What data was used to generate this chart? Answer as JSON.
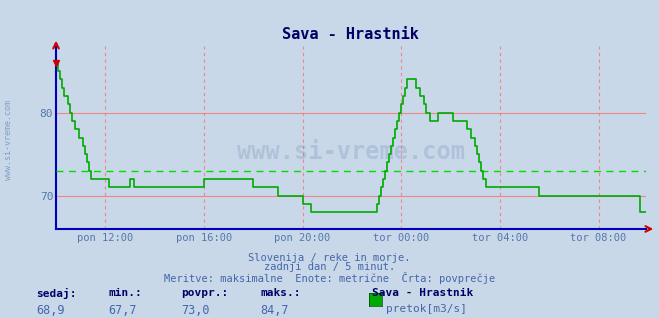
{
  "title": "Sava - Hrastnik",
  "bg_color": "#c8d8e8",
  "plot_bg": "#c8d8e8",
  "line_color": "#00aa00",
  "avg_line_color": "#00dd00",
  "grid_h_color": "#ee8888",
  "grid_v_color": "#ee8888",
  "axis_color": "#0000bb",
  "tick_color": "#cc0000",
  "label_color": "#5577aa",
  "title_color": "#000066",
  "text_color": "#4466aa",
  "yticks": [
    70,
    80
  ],
  "ylim": [
    66.0,
    88.0
  ],
  "xlim": [
    0,
    287
  ],
  "xtick_positions": [
    24,
    72,
    120,
    168,
    216,
    264
  ],
  "xtick_labels": [
    "pon 12:00",
    "pon 16:00",
    "pon 20:00",
    "tor 00:00",
    "tor 04:00",
    "tor 08:00"
  ],
  "avg_value": 73.0,
  "footer_line1": "Slovenija / reke in morje.",
  "footer_line2": "zadnji dan / 5 minut.",
  "footer_line3": "Meritve: maksimalne  Enote: metrične  Črta: povprečje",
  "stat_labels": [
    "sedaj:",
    "min.:",
    "povpr.:",
    "maks.:"
  ],
  "stat_values": [
    "68,9",
    "67,7",
    "73,0",
    "84,7"
  ],
  "legend_label": "Sava - Hrastnik",
  "legend_unit": "pretok[m3/s]",
  "watermark": "www.si-vreme.com",
  "data_y": [
    86,
    85,
    84,
    83,
    82,
    82,
    81,
    80,
    79,
    78,
    78,
    77,
    77,
    76,
    75,
    74,
    73,
    72,
    72,
    72,
    72,
    72,
    72,
    72,
    72,
    72,
    71,
    71,
    71,
    71,
    71,
    71,
    71,
    71,
    71,
    71,
    72,
    72,
    71,
    71,
    71,
    71,
    71,
    71,
    71,
    71,
    71,
    71,
    71,
    71,
    71,
    71,
    71,
    71,
    71,
    71,
    71,
    71,
    71,
    71,
    71,
    71,
    71,
    71,
    71,
    71,
    71,
    71,
    71,
    71,
    71,
    71,
    72,
    72,
    72,
    72,
    72,
    72,
    72,
    72,
    72,
    72,
    72,
    72,
    72,
    72,
    72,
    72,
    72,
    72,
    72,
    72,
    72,
    72,
    72,
    72,
    71,
    71,
    71,
    71,
    71,
    71,
    71,
    71,
    71,
    71,
    71,
    71,
    70,
    70,
    70,
    70,
    70,
    70,
    70,
    70,
    70,
    70,
    70,
    70,
    69,
    69,
    69,
    69,
    68,
    68,
    68,
    68,
    68,
    68,
    68,
    68,
    68,
    68,
    68,
    68,
    68,
    68,
    68,
    68,
    68,
    68,
    68,
    68,
    68,
    68,
    68,
    68,
    68,
    68,
    68,
    68,
    68,
    68,
    68,
    68,
    69,
    70,
    71,
    72,
    73,
    74,
    75,
    76,
    77,
    78,
    79,
    80,
    81,
    82,
    83,
    84,
    84,
    84,
    84,
    83,
    83,
    82,
    82,
    81,
    80,
    80,
    79,
    79,
    79,
    79,
    80,
    80,
    80,
    80,
    80,
    80,
    80,
    79,
    79,
    79,
    79,
    79,
    79,
    79,
    78,
    78,
    77,
    77,
    76,
    75,
    74,
    73,
    72,
    71,
    71,
    71,
    71,
    71,
    71,
    71,
    71,
    71,
    71,
    71,
    71,
    71,
    71,
    71,
    71,
    71,
    71,
    71,
    71,
    71,
    71,
    71,
    71,
    71,
    71,
    70,
    70,
    70,
    70,
    70,
    70,
    70,
    70,
    70,
    70,
    70,
    70,
    70,
    70,
    70,
    70,
    70,
    70,
    70,
    70,
    70,
    70,
    70,
    70,
    70,
    70,
    70,
    70,
    70,
    70,
    70,
    70,
    70,
    70,
    70,
    70,
    70,
    70,
    70,
    70,
    70,
    70,
    70,
    70,
    70,
    70,
    70,
    70,
    70,
    68,
    68,
    68,
    68
  ]
}
